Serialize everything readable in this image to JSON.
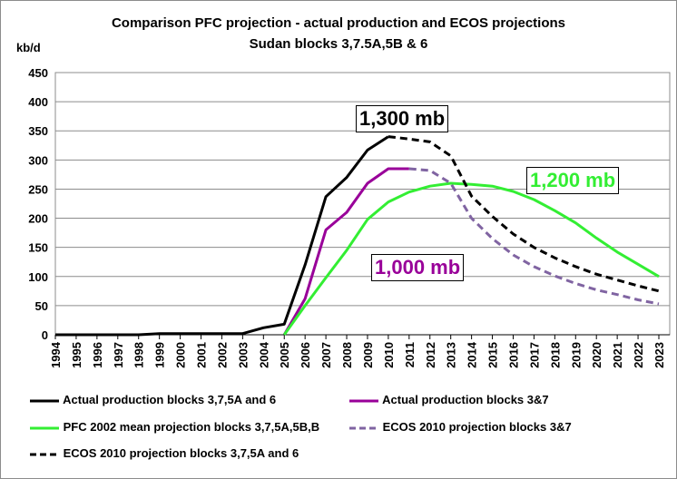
{
  "chart_data": {
    "type": "line",
    "title": "Comparison PFC projection - actual production and ECOS projections",
    "subtitle": "Sudan blocks 3,7.5A,5B & 6",
    "ylabel": "kb/d",
    "xlabel": "",
    "ylim": [
      0,
      450
    ],
    "yticks": [
      0,
      50,
      100,
      150,
      200,
      250,
      300,
      350,
      400,
      450
    ],
    "x": [
      "1994",
      "1995",
      "1996",
      "1997",
      "1998",
      "1999",
      "2000",
      "2001",
      "2002",
      "2003",
      "2004",
      "2005",
      "2006",
      "2007",
      "2008",
      "2009",
      "2010",
      "2011",
      "2012",
      "2013",
      "2014",
      "2015",
      "2016",
      "2017",
      "2018",
      "2019",
      "2020",
      "2021",
      "2022",
      "2023"
    ],
    "grid": true,
    "series": [
      {
        "name": "Actual production blocks 3,7,5A and 6",
        "color": "#000000",
        "dash": "solid",
        "points": [
          [
            1994,
            0
          ],
          [
            1995,
            0
          ],
          [
            1996,
            0
          ],
          [
            1997,
            0
          ],
          [
            1998,
            0
          ],
          [
            1999,
            2
          ],
          [
            2000,
            2
          ],
          [
            2001,
            2
          ],
          [
            2002,
            2
          ],
          [
            2003,
            2
          ],
          [
            2004,
            12
          ],
          [
            2005,
            18
          ],
          [
            2006,
            120
          ],
          [
            2007,
            237
          ],
          [
            2008,
            270
          ],
          [
            2009,
            317
          ],
          [
            2010,
            340
          ]
        ]
      },
      {
        "name": "Actual production blocks 3&7",
        "color": "#990099",
        "dash": "solid",
        "points": [
          [
            2005,
            0
          ],
          [
            2006,
            62
          ],
          [
            2007,
            180
          ],
          [
            2008,
            210
          ],
          [
            2009,
            260
          ],
          [
            2010,
            285
          ],
          [
            2011,
            285
          ]
        ]
      },
      {
        "name": "PFC 2002 mean projection blocks 3,7,5A,5B,B",
        "color": "#33ee33",
        "dash": "solid",
        "points": [
          [
            2005,
            0
          ],
          [
            2006,
            50
          ],
          [
            2007,
            98
          ],
          [
            2008,
            145
          ],
          [
            2009,
            198
          ],
          [
            2010,
            228
          ],
          [
            2011,
            245
          ],
          [
            2012,
            255
          ],
          [
            2013,
            260
          ],
          [
            2014,
            258
          ],
          [
            2015,
            255
          ],
          [
            2016,
            246
          ],
          [
            2017,
            232
          ],
          [
            2018,
            213
          ],
          [
            2019,
            192
          ],
          [
            2020,
            166
          ],
          [
            2021,
            142
          ],
          [
            2022,
            121
          ],
          [
            2023,
            100
          ]
        ]
      },
      {
        "name": "ECOS 2010 projection blocks 3&7",
        "color": "#8064a2",
        "dash": "dashed",
        "points": [
          [
            2011,
            285
          ],
          [
            2012,
            282
          ],
          [
            2013,
            260
          ],
          [
            2014,
            200
          ],
          [
            2015,
            165
          ],
          [
            2016,
            137
          ],
          [
            2017,
            117
          ],
          [
            2018,
            101
          ],
          [
            2019,
            88
          ],
          [
            2020,
            77
          ],
          [
            2021,
            69
          ],
          [
            2022,
            60
          ],
          [
            2023,
            53
          ]
        ]
      },
      {
        "name": "ECOS 2010 projection blocks 3,7,5A and 6",
        "color": "#000000",
        "dash": "dashed",
        "points": [
          [
            2010,
            340
          ],
          [
            2011,
            336
          ],
          [
            2012,
            331
          ],
          [
            2013,
            307
          ],
          [
            2014,
            238
          ],
          [
            2015,
            203
          ],
          [
            2016,
            173
          ],
          [
            2017,
            150
          ],
          [
            2018,
            132
          ],
          [
            2019,
            117
          ],
          [
            2020,
            104
          ],
          [
            2021,
            94
          ],
          [
            2022,
            84
          ],
          [
            2023,
            75
          ]
        ]
      }
    ],
    "annotations": [
      {
        "text": "1,300 mb",
        "color": "#000000"
      },
      {
        "text": "1,200 mb",
        "color": "#33ee33"
      },
      {
        "text": "1,000 mb",
        "color": "#990099"
      }
    ],
    "legend_placement": "bottom"
  }
}
